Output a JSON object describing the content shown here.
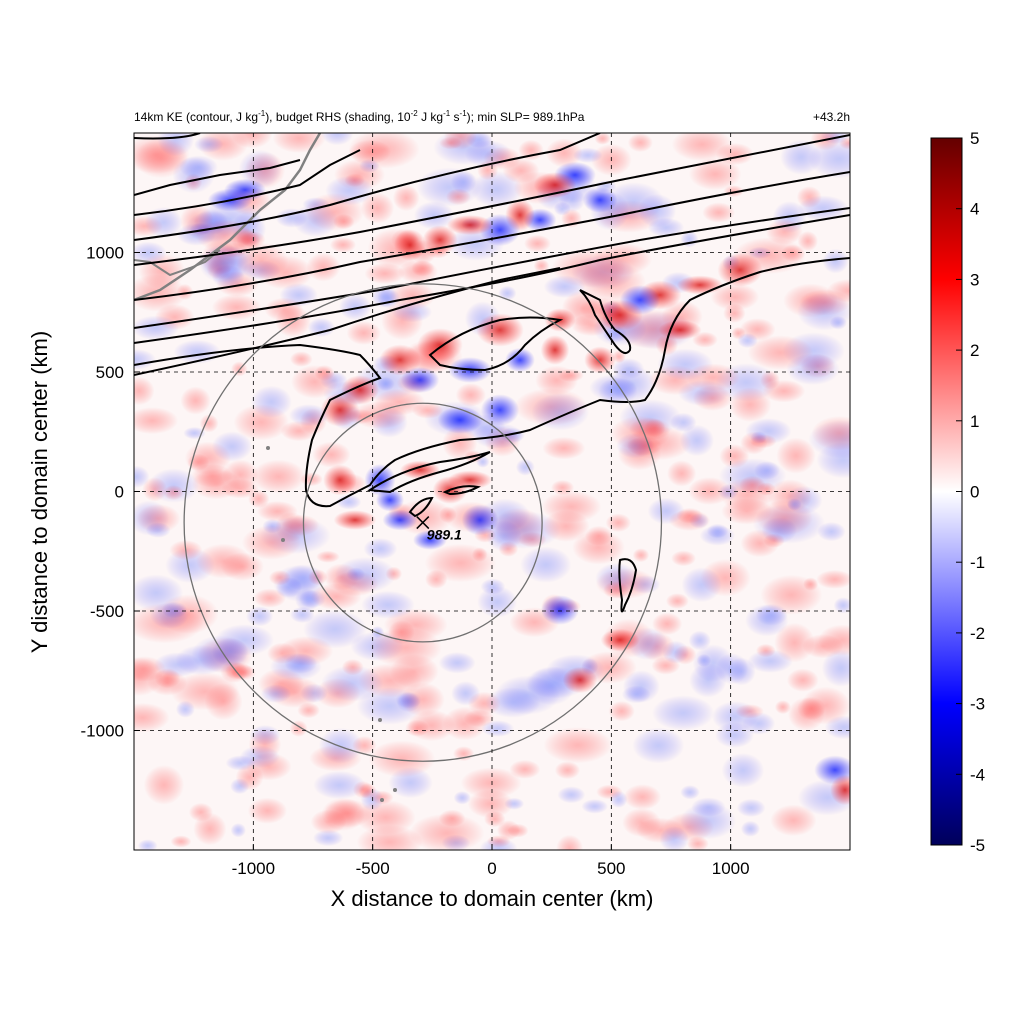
{
  "chart_data": {
    "type": "heatmap",
    "title_parts": {
      "a": "14km KE (contour, J kg",
      "a_sup": "-1",
      "b": "), budget RHS (shading, 10",
      "b_sup": "-2",
      "c": " J kg",
      "c_sup": "-1",
      "d": " s",
      "d_sup": "-1",
      "e": "); min SLP= 989.1hPa"
    },
    "time_label": "+43.2h",
    "xlabel": "X distance to domain center (km)",
    "ylabel": "Y distance to domain center (km)",
    "xlim": [
      -1500,
      1500
    ],
    "ylim": [
      -1500,
      1500
    ],
    "xticks": [
      -1000,
      -500,
      0,
      500,
      1000
    ],
    "yticks": [
      -1000,
      -500,
      0,
      500,
      1000
    ],
    "xtick_labels": [
      "-1000",
      "-500",
      "0",
      "500",
      "1000"
    ],
    "ytick_labels": [
      "-1000",
      "-500",
      "0",
      "500",
      "1000"
    ],
    "grid": true,
    "colorbar": {
      "min": -5,
      "max": 5,
      "ticks": [
        -5,
        -4,
        -3,
        -2,
        -1,
        0,
        1,
        2,
        3,
        4,
        5
      ],
      "tick_labels": [
        "-5",
        "-4",
        "-3",
        "-2",
        "-1",
        "0",
        "1",
        "2",
        "3",
        "4",
        "5"
      ],
      "colormap": [
        "#00005a",
        "#0000ff",
        "#ffffff",
        "#ff0000",
        "#640000"
      ]
    },
    "storm_center": {
      "x": -290,
      "y": -130,
      "label": "989.1"
    },
    "radius_rings_km": [
      500,
      1000
    ],
    "colors": {
      "contour": "#000000",
      "coast": "#808080",
      "ring": "#707070",
      "grid": "#000000"
    }
  }
}
